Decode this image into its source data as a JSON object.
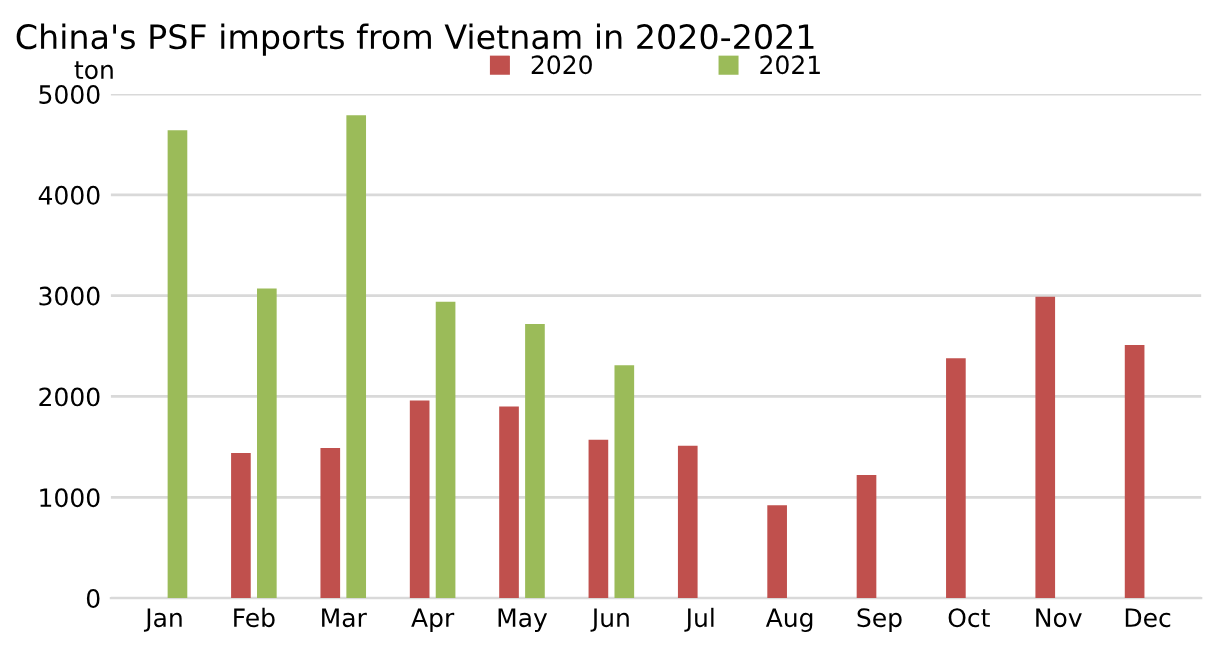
{
  "chart_data": {
    "type": "bar",
    "title": "China's PSF imports from Vietnam in 2020-2021",
    "ylabel": "ton",
    "categories": [
      "Jan",
      "Feb",
      "Mar",
      "Apr",
      "May",
      "Jun",
      "Jul",
      "Aug",
      "Sep",
      "Oct",
      "Nov",
      "Dec"
    ],
    "series": [
      {
        "name": "2020",
        "color": "#c0504d",
        "values": [
          null,
          1440,
          1490,
          1960,
          1900,
          1570,
          1510,
          920,
          1220,
          2380,
          2990,
          2510
        ]
      },
      {
        "name": "2021",
        "color": "#9bbb59",
        "values": [
          4640,
          3070,
          4790,
          2940,
          2720,
          2310,
          null,
          null,
          null,
          null,
          null,
          null
        ]
      }
    ],
    "ylim": [
      0,
      5000
    ],
    "yticks": [
      0,
      1000,
      2000,
      3000,
      4000,
      5000
    ],
    "grid": "y",
    "legend": "top"
  }
}
